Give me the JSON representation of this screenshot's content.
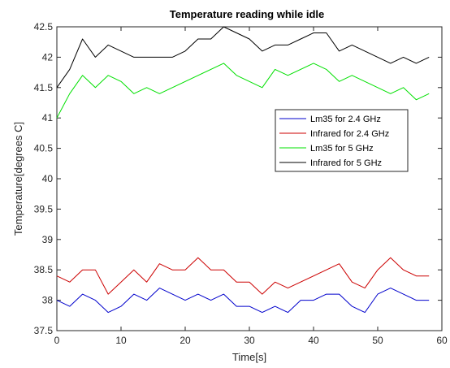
{
  "chart_data": {
    "type": "line",
    "title": "Temperature reading while idle",
    "xlabel": "Time[s]",
    "ylabel": "Temperature[degrees C]",
    "xlim": [
      0,
      60
    ],
    "ylim": [
      37.5,
      42.5
    ],
    "xticks": [
      0,
      10,
      20,
      30,
      40,
      50,
      60
    ],
    "yticks": [
      37.5,
      38,
      38.5,
      39,
      39.5,
      40,
      40.5,
      41,
      41.5,
      42,
      42.5
    ],
    "xtick_labels": [
      "0",
      "10",
      "20",
      "30",
      "40",
      "50",
      "60"
    ],
    "ytick_labels": [
      "37.5",
      "38",
      "38.5",
      "39",
      "39.5",
      "40",
      "40.5",
      "41",
      "41.5",
      "42",
      "42.5"
    ],
    "grid": false,
    "legend_position": "right",
    "series": [
      {
        "name": "Lm35 for 2.4 GHz",
        "color": "#0000cc",
        "x": [
          0,
          2,
          4,
          6,
          8,
          10,
          12,
          14,
          16,
          18,
          20,
          22,
          24,
          26,
          28,
          30,
          32,
          34,
          36,
          38,
          40,
          42,
          44,
          46,
          48,
          50,
          52,
          54,
          56,
          58
        ],
        "y": [
          38.0,
          37.9,
          38.1,
          38.0,
          37.8,
          37.9,
          38.1,
          38.0,
          38.2,
          38.1,
          38.0,
          38.1,
          38.0,
          38.1,
          37.9,
          37.9,
          37.8,
          37.9,
          37.8,
          38.0,
          38.0,
          38.1,
          38.1,
          37.9,
          37.8,
          38.1,
          38.2,
          38.1,
          38.0,
          38.0
        ]
      },
      {
        "name": "Infrared for 2.4 GHz",
        "color": "#cc0000",
        "x": [
          0,
          2,
          4,
          6,
          8,
          10,
          12,
          14,
          16,
          18,
          20,
          22,
          24,
          26,
          28,
          30,
          32,
          34,
          36,
          44,
          46,
          48,
          50,
          52,
          54,
          56,
          58
        ],
        "y": [
          38.4,
          38.3,
          38.5,
          38.5,
          38.1,
          38.3,
          38.5,
          38.3,
          38.6,
          38.5,
          38.5,
          38.7,
          38.5,
          38.5,
          38.3,
          38.3,
          38.1,
          38.3,
          38.2,
          38.6,
          38.3,
          38.2,
          38.5,
          38.7,
          38.5,
          38.4,
          38.4
        ]
      },
      {
        "name": "Lm35 for 5 GHz",
        "color": "#00e000",
        "x": [
          0,
          2,
          4,
          6,
          8,
          10,
          12,
          14,
          16,
          26,
          28,
          32,
          34,
          36,
          40,
          42,
          44,
          46,
          48,
          52,
          54,
          56,
          58
        ],
        "y": [
          41.0,
          41.4,
          41.7,
          41.5,
          41.7,
          41.6,
          41.4,
          41.5,
          41.4,
          41.9,
          41.7,
          41.5,
          41.8,
          41.7,
          41.9,
          41.8,
          41.6,
          41.7,
          41.6,
          41.4,
          41.5,
          41.3,
          41.4
        ]
      },
      {
        "name": "Infrared for 5 GHz",
        "color": "#000000",
        "x": [
          0,
          2,
          4,
          6,
          8,
          10,
          12,
          14,
          16,
          18,
          20,
          22,
          24,
          26,
          28,
          30,
          32,
          34,
          36,
          38,
          40,
          42,
          44,
          46,
          48,
          50,
          52,
          54,
          56,
          58
        ],
        "y": [
          41.5,
          41.8,
          42.3,
          42.0,
          42.2,
          42.1,
          42.0,
          42.0,
          42.0,
          42.0,
          42.1,
          42.3,
          42.3,
          42.5,
          42.4,
          42.3,
          42.1,
          42.2,
          42.2,
          42.3,
          42.4,
          42.4,
          42.1,
          42.2,
          42.1,
          42.0,
          41.9,
          42.0,
          41.9,
          42.0
        ]
      }
    ]
  }
}
